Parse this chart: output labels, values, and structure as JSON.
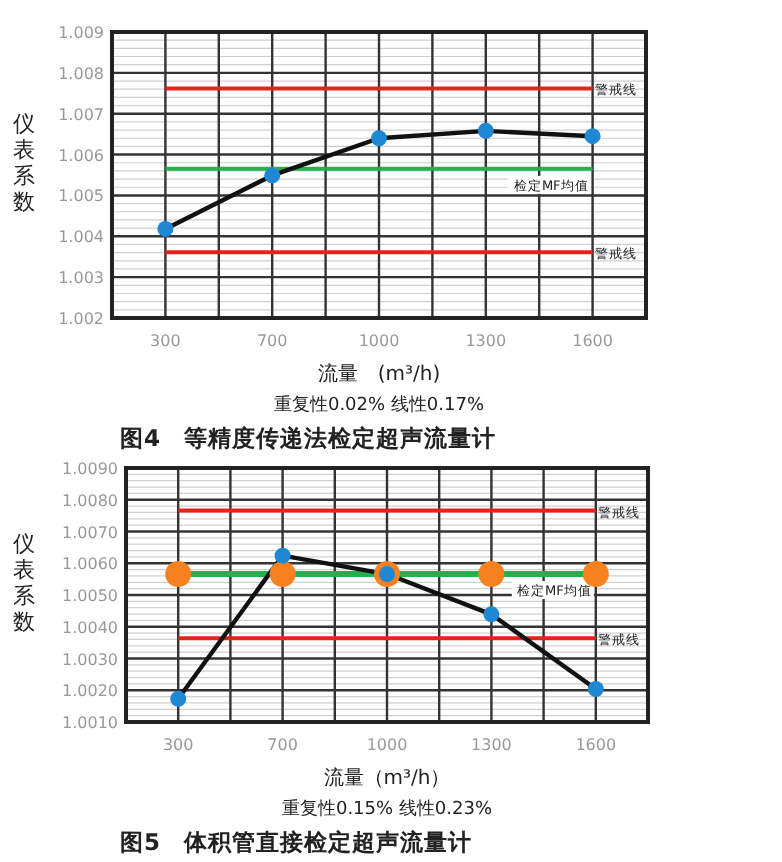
{
  "chart_data": [
    {
      "type": "line",
      "title": "图4　等精度传递法检定超声流量计",
      "xlabel": "流量　(m³/h)",
      "ylabel": "仪表系数",
      "annotations": [
        "重复性0.02% 线性0.17%"
      ],
      "categories": [
        "300",
        "700",
        "1000",
        "1300",
        "1600"
      ],
      "series": [
        {
          "color": "#1e88d4",
          "values": [
            1.00418,
            1.00549,
            1.0064,
            1.00658,
            1.00645
          ]
        }
      ],
      "ylim": [
        1.002,
        1.009
      ],
      "yticks": [
        1.002,
        1.003,
        1.004,
        1.005,
        1.006,
        1.007,
        1.008,
        1.009
      ],
      "grid": true,
      "marker": "circle",
      "line_style": "solid",
      "ref_lines": [
        {
          "axis": "y",
          "value": 1.00762,
          "label": "警戒线",
          "color": "#e8211d"
        },
        {
          "axis": "y",
          "value": 1.00565,
          "label": "检定MF均值",
          "color": "#22b14c"
        },
        {
          "axis": "y",
          "value": 1.00361,
          "label": "警戒线",
          "color": "#e8211d"
        }
      ]
    },
    {
      "type": "line",
      "title": "图5　体积管直接检定超声流量计",
      "xlabel": "流量（m³/h）",
      "ylabel": "仪表系数",
      "annotations": [
        "重复性0.15% 线性0.23%"
      ],
      "categories": [
        "300",
        "700",
        "1000",
        "1300",
        "1600"
      ],
      "series": [
        {
          "type": "scatter",
          "color": "#f5821f",
          "values": [
            1.00566,
            1.00566,
            1.00566,
            1.00566,
            1.00566
          ]
        },
        {
          "color": "#1e88d4",
          "values": [
            1.00173,
            1.00624,
            1.00566,
            1.00439,
            1.00204
          ]
        }
      ],
      "ylim": [
        1.001,
        1.009
      ],
      "yticks": [
        {
          "value": 1.001,
          "label": "1.0010"
        },
        {
          "value": 1.002,
          "label": "1.0020"
        },
        {
          "value": 1.003,
          "label": "1.0030"
        },
        {
          "value": 1.004,
          "label": "1.0040"
        },
        {
          "value": 1.005,
          "label": "1.0050"
        },
        {
          "value": 1.006,
          "label": "1.0060"
        },
        {
          "value": 1.007,
          "label": "1.0070"
        },
        {
          "value": 1.008,
          "label": "1.0080"
        },
        {
          "value": 1.009,
          "label": "1.0090"
        }
      ],
      "grid": true,
      "marker": "circle",
      "line_style": "solid",
      "ref_lines": [
        {
          "axis": "y",
          "value": 1.00766,
          "label": "警戒线",
          "color": "#e8211d"
        },
        {
          "axis": "y",
          "value": 1.00566,
          "label": "检定MF均值",
          "color": "#22b14c"
        },
        {
          "axis": "y",
          "value": 1.00364,
          "label": "警戒线",
          "color": "#e8211d"
        }
      ]
    }
  ]
}
